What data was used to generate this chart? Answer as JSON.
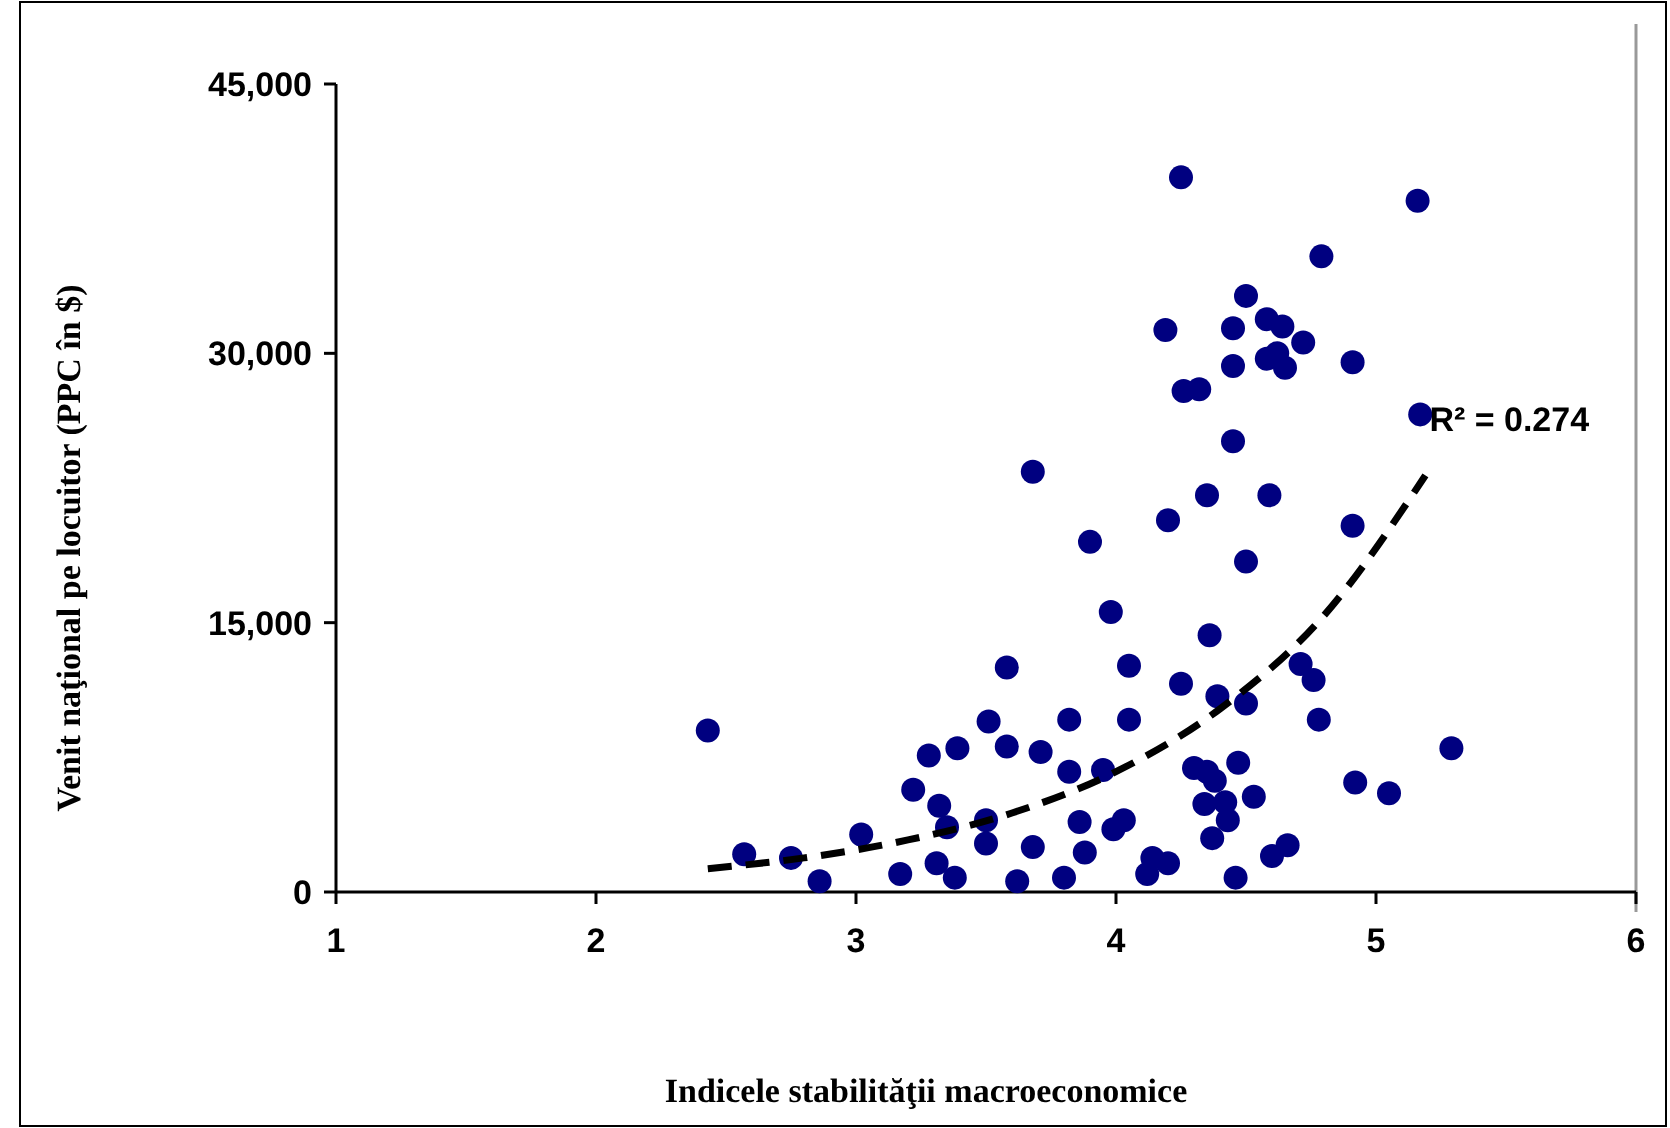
{
  "chart_data": {
    "type": "scatter",
    "xlabel": "Indicele stabilităţii macroeconomice",
    "ylabel": "Venit naţional pe locuitor (PPC în $)",
    "xlim": [
      1,
      6
    ],
    "xticks": [
      1,
      2,
      3,
      4,
      5,
      6
    ],
    "ylim": [
      0,
      45000
    ],
    "yticks": [
      {
        "value": 0,
        "label": "0"
      },
      {
        "value": 15000,
        "label": "15,000"
      },
      {
        "value": 30000,
        "label": "30,000"
      },
      {
        "value": 45000,
        "label": "45,000"
      }
    ],
    "grid": false,
    "marker": "circle",
    "annotations": [
      "R² = 0.274"
    ],
    "series": [
      {
        "color": "#000080",
        "x": [
          2.43,
          2.57,
          2.75,
          2.86,
          3.02,
          3.17,
          3.28,
          3.39,
          3.22,
          3.32,
          3.35,
          3.31,
          3.38,
          3.51,
          3.58,
          3.5,
          3.5,
          3.58,
          3.71,
          3.68,
          3.62,
          3.82,
          3.82,
          3.95,
          3.86,
          3.88,
          3.8,
          3.98,
          4.05,
          4.05,
          4.03,
          3.99,
          4.12,
          4.14,
          3.68,
          3.9,
          4.2,
          4.2,
          4.25,
          5.16,
          4.79,
          4.5,
          4.19,
          4.45,
          4.58,
          4.64,
          4.72,
          4.58,
          4.62,
          4.65,
          4.45,
          4.91,
          4.26,
          4.32,
          5.17,
          4.45,
          4.35,
          4.59,
          4.91,
          4.5,
          4.36,
          4.25,
          4.39,
          4.5,
          4.71,
          4.76,
          4.78,
          5.29,
          4.3,
          4.35,
          4.38,
          4.47,
          4.34,
          4.42,
          4.43,
          4.53,
          4.92,
          5.05,
          4.37,
          4.6,
          4.66,
          4.46
        ],
        "values": [
          9000,
          2100,
          1900,
          600,
          3200,
          1000,
          7600,
          8000,
          5700,
          4800,
          3600,
          1600,
          800,
          9500,
          8100,
          4000,
          2700,
          12500,
          7800,
          2500,
          600,
          9600,
          6700,
          6800,
          3900,
          2200,
          800,
          15600,
          12600,
          9600,
          4000,
          3500,
          1000,
          1900,
          23400,
          19500,
          1600,
          20700,
          39800,
          38500,
          35400,
          33200,
          31300,
          31400,
          31900,
          31500,
          30600,
          29700,
          30000,
          29200,
          29300,
          29500,
          27900,
          28000,
          26600,
          25100,
          22100,
          22100,
          20400,
          18400,
          14300,
          11600,
          10900,
          10500,
          12700,
          11800,
          9600,
          8000,
          6900,
          6700,
          6200,
          7200,
          4900,
          5000,
          4000,
          5300,
          6100,
          5500,
          3000,
          2000,
          2600,
          800
        ]
      },
      {
        "type": "line",
        "color": "#000000",
        "line_style": "dashed",
        "marker": "none",
        "x": [
          2.43,
          2.8,
          3.2,
          3.6,
          4.0,
          4.4,
          4.8,
          5.19
        ],
        "values": [
          1300,
          1900,
          2900,
          4400,
          6700,
          10200,
          15400,
          23200
        ]
      }
    ]
  }
}
